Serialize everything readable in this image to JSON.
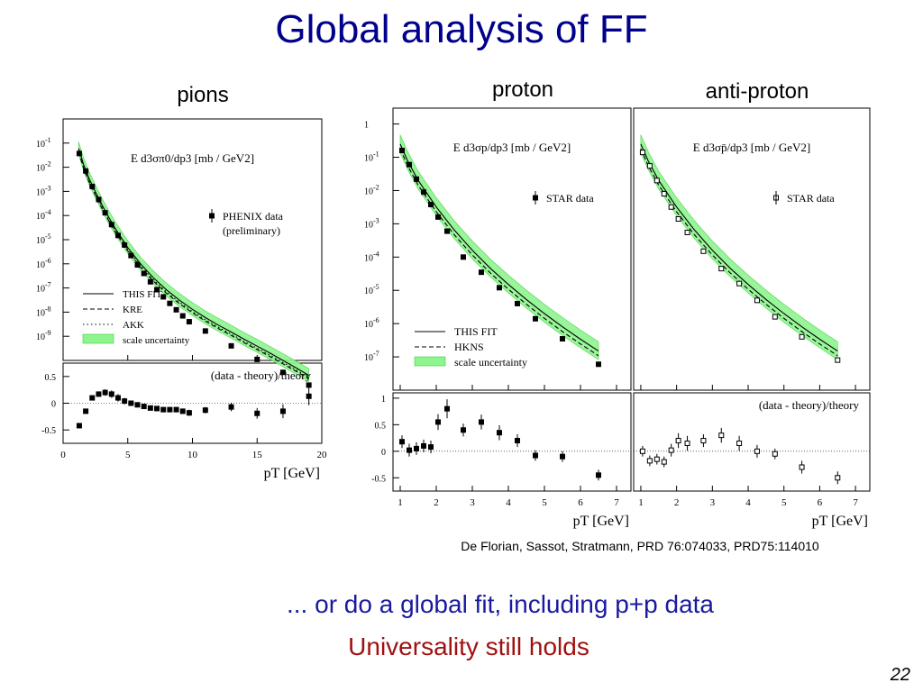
{
  "slide": {
    "title": "Global analysis of FF",
    "subtitle": "... or do a global fit, including p+p data",
    "conclusion": "Universality still holds",
    "citation": "De Florian, Sassot, Stratmann, PRD 76:074033, PRD75:114010",
    "page_number": "22"
  },
  "colors": {
    "band": "#8ef58e",
    "band_edge": "#3ccf3c",
    "data": "#000000",
    "title": "#00008b",
    "conclusion": "#a01010"
  },
  "chart_data": [
    {
      "id": "pions",
      "type": "scatter",
      "panel_label": "pions",
      "xlabel": "pT [GeV]",
      "xlim": [
        0,
        20
      ],
      "x_ticks": [
        "0",
        "5",
        "10",
        "15",
        "20"
      ],
      "top": {
        "yscale": "log",
        "ylim": [
          1e-10,
          1
        ],
        "ylabel_formula": "E d3σπ0/dp3 [mb / GeV2]",
        "y_ticks": [
          {
            "mantissa": "10",
            "exp": "-1"
          },
          {
            "mantissa": "10",
            "exp": "-2"
          },
          {
            "mantissa": "10",
            "exp": "-3"
          },
          {
            "mantissa": "10",
            "exp": "-4"
          },
          {
            "mantissa": "10",
            "exp": "-5"
          },
          {
            "mantissa": "10",
            "exp": "-6"
          },
          {
            "mantissa": "10",
            "exp": "-7"
          },
          {
            "mantissa": "10",
            "exp": "-8"
          },
          {
            "mantissa": "10",
            "exp": "-9"
          }
        ],
        "legend_data": [
          "PHENIX data",
          "(preliminary)"
        ],
        "legend_lines": [
          {
            "style": "solid",
            "label": "THIS FIT"
          },
          {
            "style": "dashed",
            "label": "KRE"
          },
          {
            "style": "dotted",
            "label": "AKK"
          },
          {
            "style": "band",
            "label": "scale uncertainty"
          }
        ],
        "data": {
          "x": [
            1.25,
            1.75,
            2.25,
            2.75,
            3.25,
            3.75,
            4.25,
            4.75,
            5.25,
            5.75,
            6.25,
            6.75,
            7.25,
            7.75,
            8.25,
            8.75,
            9.25,
            9.75,
            11.0,
            13.0,
            15.0,
            17.0,
            19.0
          ],
          "y": [
            0.037,
            0.007,
            0.0016,
            0.00046,
            0.00013,
            4.2e-05,
            1.5e-05,
            6e-06,
            2.2e-06,
            9e-07,
            4e-07,
            1.8e-07,
            8.5e-08,
            4.3e-08,
            2.3e-08,
            1.25e-08,
            7e-09,
            4e-09,
            1.65e-09,
            4e-10,
            1.1e-10,
            3.2e-11,
            9.5e-12
          ]
        },
        "fit": {
          "x": [
            1.2,
            1.6,
            2.0,
            2.5,
            3.0,
            3.5,
            4.0,
            5.0,
            6.0,
            7.0,
            8.0,
            9.0,
            10.0,
            11.0,
            12.0,
            13.0,
            14.0,
            15.0,
            16.0,
            17.0,
            18.0,
            19.0
          ],
          "y": [
            0.06,
            0.012,
            0.0035,
            0.00095,
            0.00028,
            9e-05,
            3.1e-05,
            4.7e-06,
            9.8e-07,
            2.6e-07,
            8.3e-08,
            3.1e-08,
            1.3e-08,
            5.9e-09,
            2.9e-09,
            1.5e-09,
            7.5e-10,
            3.9e-10,
            2e-10,
            1e-10,
            5e-11,
            2.4e-11
          ]
        }
      },
      "bottom": {
        "label": "(data - theory)/theory",
        "ylim": [
          -0.75,
          0.75
        ],
        "y_ticks": [
          "0.5",
          "0",
          "-0.5"
        ],
        "x": [
          1.25,
          1.75,
          2.25,
          2.75,
          3.25,
          3.75,
          4.25,
          4.75,
          5.25,
          5.75,
          6.25,
          6.75,
          7.25,
          7.75,
          8.25,
          8.75,
          9.25,
          9.75,
          11.0,
          13.0,
          15.0,
          17.0,
          19.0
        ],
        "y": [
          -0.42,
          -0.15,
          0.1,
          0.17,
          0.2,
          0.17,
          0.1,
          0.04,
          0.0,
          -0.03,
          -0.06,
          -0.09,
          -0.1,
          -0.12,
          -0.12,
          -0.12,
          -0.15,
          -0.18,
          -0.13,
          -0.07,
          -0.19,
          -0.15,
          0.13
        ],
        "err": [
          0.03,
          0.03,
          0.04,
          0.05,
          0.06,
          0.07,
          0.07,
          0.06,
          0.05,
          0.04,
          0.04,
          0.04,
          0.04,
          0.04,
          0.04,
          0.04,
          0.05,
          0.06,
          0.06,
          0.08,
          0.1,
          0.13,
          0.17
        ]
      }
    },
    {
      "id": "proton",
      "type": "scatter",
      "panel_label": "proton",
      "xlabel": "pT [GeV]",
      "xlim": [
        0.8,
        7.4
      ],
      "x_ticks": [
        "1",
        "2",
        "3",
        "4",
        "5",
        "6",
        "7"
      ],
      "top": {
        "yscale": "log",
        "ylim": [
          1e-08,
          3
        ],
        "ylabel_formula": "E d3σp/dp3 [mb / GeV2]",
        "y_ticks": [
          {
            "mantissa": "1",
            "exp": ""
          },
          {
            "mantissa": "10",
            "exp": "-1"
          },
          {
            "mantissa": "10",
            "exp": "-2"
          },
          {
            "mantissa": "10",
            "exp": "-3"
          },
          {
            "mantissa": "10",
            "exp": "-4"
          },
          {
            "mantissa": "10",
            "exp": "-5"
          },
          {
            "mantissa": "10",
            "exp": "-6"
          },
          {
            "mantissa": "10",
            "exp": "-7"
          }
        ],
        "legend_data": [
          "STAR data"
        ],
        "legend_lines": [
          {
            "style": "solid",
            "label": "THIS FIT"
          },
          {
            "style": "dashed",
            "label": "HKNS"
          },
          {
            "style": "band",
            "label": "scale uncertainty"
          }
        ],
        "data": {
          "x": [
            1.05,
            1.25,
            1.45,
            1.65,
            1.85,
            2.05,
            2.3,
            2.75,
            3.25,
            3.75,
            4.25,
            4.75,
            5.5,
            6.5
          ],
          "y": [
            0.16,
            0.06,
            0.022,
            0.009,
            0.0038,
            0.0016,
            0.0006,
            0.0001,
            3.5e-05,
            1.2e-05,
            4e-06,
            1.4e-06,
            3.5e-07,
            6e-08
          ]
        },
        "fit": {
          "x": [
            1.0,
            1.2,
            1.5,
            2.0,
            2.5,
            3.0,
            3.5,
            4.0,
            4.5,
            5.0,
            5.5,
            6.0,
            6.5
          ],
          "y": [
            0.25,
            0.08,
            0.02,
            0.0032,
            0.00065,
            0.00016,
            4.6e-05,
            1.5e-05,
            5.3e-06,
            2e-06,
            8e-07,
            3.4e-07,
            1.5e-07
          ]
        }
      },
      "bottom": {
        "label": "",
        "ylim": [
          -0.75,
          1.1
        ],
        "y_ticks": [
          "1",
          "0.5",
          "0",
          "-0.5"
        ],
        "x": [
          1.05,
          1.25,
          1.45,
          1.65,
          1.85,
          2.05,
          2.3,
          2.75,
          3.25,
          3.75,
          4.25,
          4.75,
          5.5,
          6.5
        ],
        "y": [
          0.18,
          0.02,
          0.05,
          0.1,
          0.08,
          0.55,
          0.8,
          0.4,
          0.55,
          0.35,
          0.2,
          -0.08,
          -0.1,
          -0.45
        ],
        "err": [
          0.12,
          0.12,
          0.12,
          0.12,
          0.12,
          0.15,
          0.18,
          0.12,
          0.14,
          0.14,
          0.12,
          0.1,
          0.1,
          0.1
        ]
      }
    },
    {
      "id": "anti-proton",
      "type": "scatter",
      "panel_label": "anti-proton",
      "xlabel": "pT [GeV]",
      "xlim": [
        0.8,
        7.4
      ],
      "x_ticks": [
        "1",
        "2",
        "3",
        "4",
        "5",
        "6",
        "7"
      ],
      "top": {
        "yscale": "log",
        "ylim": [
          1e-08,
          3
        ],
        "ylabel_formula": "E d3σp̄/dp3 [mb / GeV2]",
        "y_ticks": [],
        "legend_data": [
          "STAR data"
        ],
        "legend_lines": [],
        "data": {
          "x": [
            1.05,
            1.25,
            1.45,
            1.65,
            1.85,
            2.05,
            2.3,
            2.75,
            3.25,
            3.75,
            4.25,
            4.75,
            5.5,
            6.5
          ],
          "y": [
            0.14,
            0.055,
            0.02,
            0.008,
            0.0032,
            0.0014,
            0.00055,
            0.00015,
            4.5e-05,
            1.6e-05,
            5e-06,
            1.6e-06,
            4e-07,
            8e-08
          ]
        },
        "fit": {
          "x": [
            1.0,
            1.2,
            1.5,
            2.0,
            2.5,
            3.0,
            3.5,
            4.0,
            4.5,
            5.0,
            5.5,
            6.0,
            6.5
          ],
          "y": [
            0.25,
            0.08,
            0.02,
            0.0032,
            0.00065,
            0.00016,
            4.6e-05,
            1.5e-05,
            5.3e-06,
            2e-06,
            8e-07,
            3.4e-07,
            1.5e-07
          ]
        }
      },
      "bottom": {
        "label": "(data - theory)/theory",
        "ylim": [
          -0.75,
          1.1
        ],
        "y_ticks": [],
        "x": [
          1.05,
          1.25,
          1.45,
          1.65,
          1.85,
          2.05,
          2.3,
          2.75,
          3.25,
          3.75,
          4.25,
          4.75,
          5.5,
          6.5
        ],
        "y": [
          0.0,
          -0.18,
          -0.15,
          -0.2,
          0.02,
          0.2,
          0.15,
          0.2,
          0.3,
          0.15,
          0.0,
          -0.05,
          -0.3,
          -0.5
        ],
        "err": [
          0.1,
          0.1,
          0.1,
          0.1,
          0.12,
          0.14,
          0.14,
          0.12,
          0.14,
          0.14,
          0.12,
          0.1,
          0.12,
          0.12
        ]
      }
    }
  ]
}
